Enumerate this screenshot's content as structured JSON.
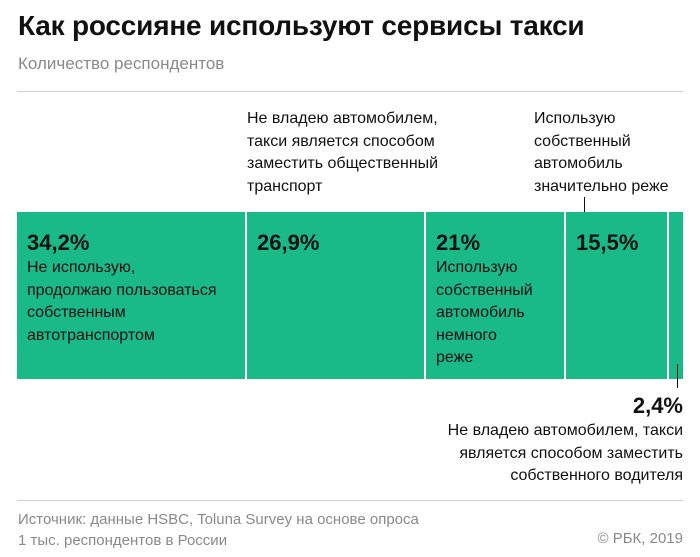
{
  "title": "Как россияне используют сервисы такси",
  "subtitle": "Количество респондентов",
  "source": "Источник: данные HSBC, Toluna Survey на основе опроса\n1 тыс. респондентов в России",
  "copyright": "© РБК, 2019",
  "colors": {
    "bar": "#19b988",
    "divider": "#ffffff",
    "text": "#111111",
    "muted": "#8a8a8a"
  },
  "chart_data": {
    "type": "bar",
    "orientation": "horizontal-stacked",
    "title": "Как россияне используют сервисы такси",
    "subtitle": "Количество респондентов",
    "unit": "%",
    "categories": [
      "Не использую, продолжаю пользоваться собственным автотранспортом",
      "Не владею автомобилем, такси является способом заместить общественный транспорт",
      "Использую собственный автомобиль немного реже",
      "Использую собственный автомобиль значительно реже",
      "Не владею автомобилем, такси является способом заместить собственного водителя"
    ],
    "values": [
      34.2,
      26.9,
      21,
      15.5,
      2.4
    ],
    "value_labels": [
      "34,2%",
      "26,9%",
      "21%",
      "15,5%",
      "2,4%"
    ],
    "inner_labels": [
      "Не использую,\nпродолжаю пользоваться\nсобственным\nавтотранспортом",
      "",
      "Использую\nсобственный\nавтомобиль\nнемного\nреже",
      "",
      ""
    ],
    "annotations": {
      "above_1": "Не владею автомобилем,\nтакси является способом\nзаместить общественный\nтранспорт",
      "above_3": "Использую\nсобственный\nавтомобиль\nзначительно реже",
      "below_4": "Не владею автомобилем, такси\nявляется способом заместить\nсобственного водителя"
    },
    "legend": "none",
    "grid": false
  }
}
